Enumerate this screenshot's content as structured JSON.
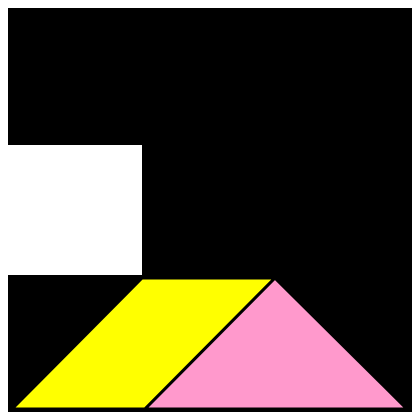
{
  "puzzle": {
    "kind": "tangram",
    "background_color": "#ffffff",
    "silhouette_color": "#000000",
    "piece_outline_color": "#000000",
    "pieces": [
      {
        "name": "parallelogram",
        "color": "#ffff00"
      },
      {
        "name": "large-triangle",
        "color": "#ff99cc"
      }
    ]
  }
}
